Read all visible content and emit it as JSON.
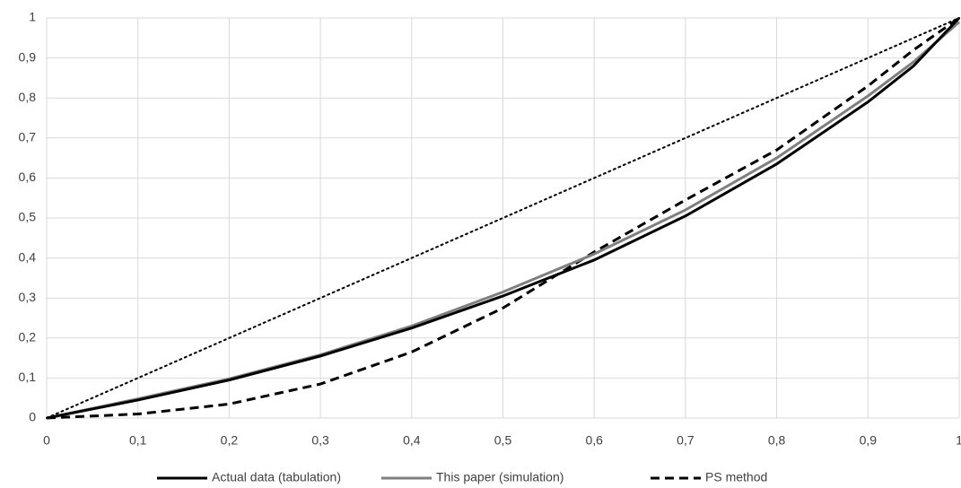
{
  "chart_data": {
    "type": "line",
    "x": [
      0,
      0.1,
      0.2,
      0.3,
      0.4,
      0.5,
      0.6,
      0.7,
      0.8,
      0.9,
      0.95,
      1
    ],
    "series": [
      {
        "name": "Actual data (tabulation)",
        "color": "#000000",
        "dash": "solid",
        "values": [
          0,
          0.045,
          0.095,
          0.155,
          0.225,
          0.305,
          0.395,
          0.505,
          0.635,
          0.79,
          0.88,
          1
        ]
      },
      {
        "name": "This paper (simulation)",
        "color": "#7f7f7f",
        "dash": "solid",
        "values": [
          0,
          0.048,
          0.098,
          0.158,
          0.23,
          0.315,
          0.41,
          0.52,
          0.65,
          0.805,
          0.89,
          0.99
        ]
      },
      {
        "name": "PS method",
        "color": "#000000",
        "dash": "dashed",
        "values": [
          0,
          0.01,
          0.035,
          0.085,
          0.165,
          0.275,
          0.415,
          0.545,
          0.67,
          0.83,
          0.92,
          1
        ]
      },
      {
        "color": "#000000",
        "dash": "dotted",
        "values": [
          0,
          0.1,
          0.2,
          0.3,
          0.4,
          0.5,
          0.6,
          0.7,
          0.8,
          0.9,
          0.95,
          1
        ]
      }
    ],
    "xlim": [
      0,
      1
    ],
    "ylim": [
      0,
      1
    ],
    "xticks": [
      0,
      {
        "value": 0.1,
        "label": "0,1"
      },
      {
        "value": 0.2,
        "label": "0,2"
      },
      {
        "value": 0.3,
        "label": "0,3"
      },
      {
        "value": 0.4,
        "label": "0,4"
      },
      {
        "value": 0.5,
        "label": "0,5"
      },
      {
        "value": 0.6,
        "label": "0,6"
      },
      {
        "value": 0.7,
        "label": "0,7"
      },
      {
        "value": 0.8,
        "label": "0,8"
      },
      {
        "value": 0.9,
        "label": "0,9"
      },
      1
    ],
    "yticks": [
      0,
      {
        "value": 0.1,
        "label": "0,1"
      },
      {
        "value": 0.2,
        "label": "0,2"
      },
      {
        "value": 0.3,
        "label": "0,3"
      },
      {
        "value": 0.4,
        "label": "0,4"
      },
      {
        "value": 0.5,
        "label": "0,5"
      },
      {
        "value": 0.6,
        "label": "0,6"
      },
      {
        "value": 0.7,
        "label": "0,7"
      },
      {
        "value": 0.8,
        "label": "0,8"
      },
      {
        "value": 0.9,
        "label": "0,9"
      },
      1
    ],
    "grid": true,
    "legend": "bottom"
  }
}
